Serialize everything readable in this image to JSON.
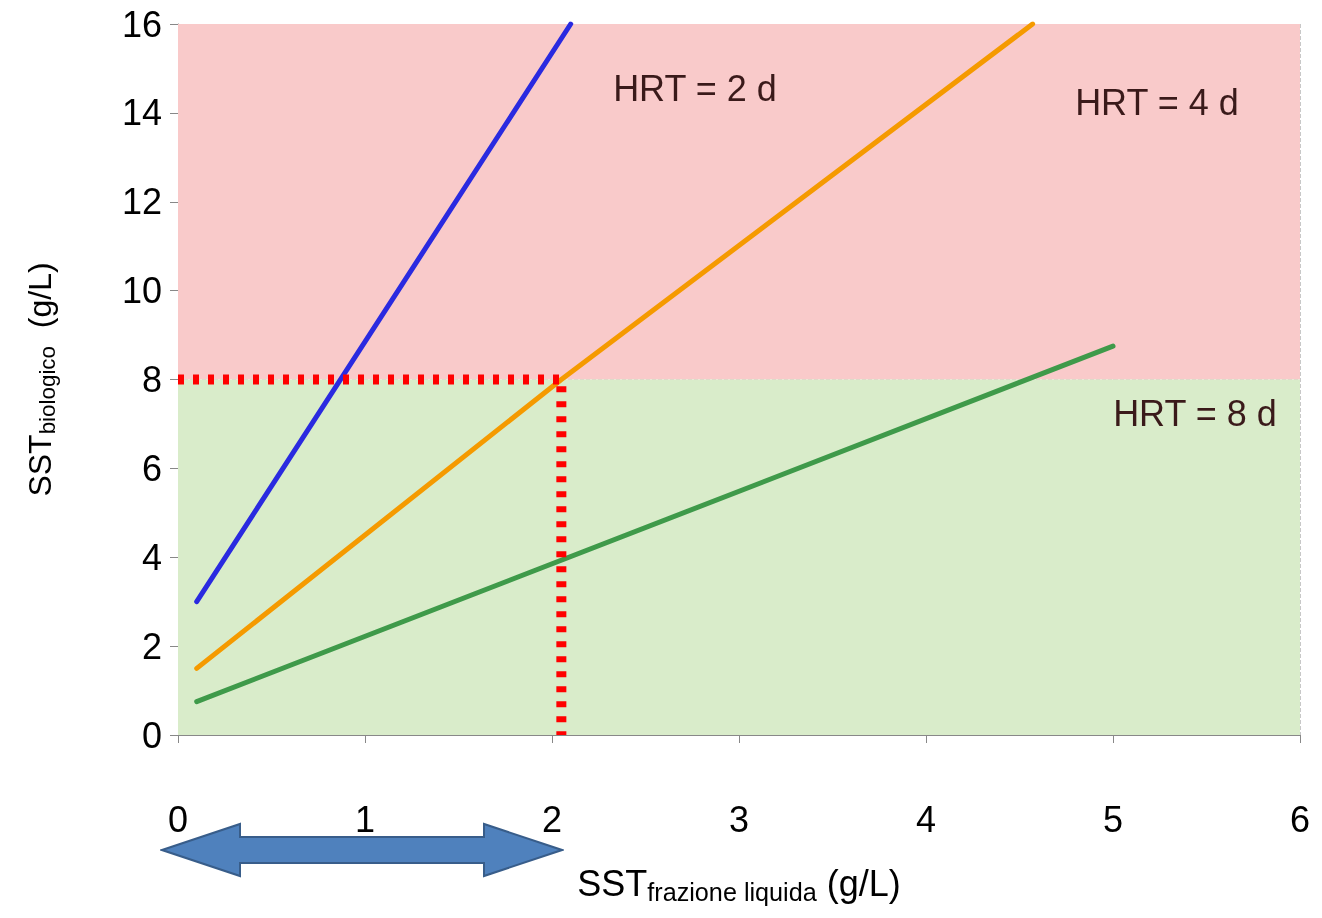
{
  "chart_data": {
    "type": "line",
    "xlabel": "SST$_{frazione liquida}$ (g/L)",
    "ylabel": "SST$_{biologico}$  (g/L)",
    "series": [
      {
        "name": "HRT = 2 d",
        "color": "#2a2ae0",
        "x": [
          0.1,
          2.1
        ],
        "values": [
          3,
          16
        ]
      },
      {
        "name": "HRT = 4 d",
        "color": "#f59a00",
        "x": [
          0.1,
          2.05,
          4.57
        ],
        "values": [
          1.5,
          8,
          16
        ]
      },
      {
        "name": "HRT = 8 d",
        "color": "#3f9a4a",
        "x": [
          0.1,
          5
        ],
        "values": [
          0.75,
          8.75
        ]
      },
      {
        "color": "#ff0000",
        "x": [
          0,
          2.05,
          2.05
        ],
        "values": [
          8,
          8,
          0
        ],
        "line_style": "dotted"
      }
    ],
    "bands": [
      {
        "axis": "y",
        "from": 8,
        "to": 16,
        "color": "#f9caca"
      },
      {
        "axis": "y",
        "from": 0,
        "to": 8,
        "color": "#d9ecca"
      }
    ],
    "xlim": [
      0,
      6
    ],
    "xticks": [
      0,
      1,
      2,
      3,
      4,
      5,
      6
    ],
    "ylim": [
      0,
      16
    ],
    "yticks": [
      0,
      2,
      4,
      6,
      8,
      10,
      12,
      14,
      16
    ],
    "grid": true,
    "marker": "none",
    "line_style": "solid"
  }
}
